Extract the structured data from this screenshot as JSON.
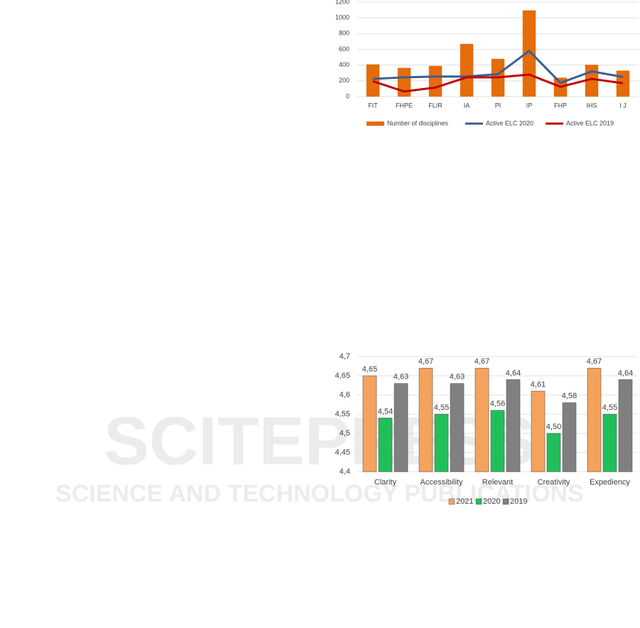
{
  "chart_data": [
    {
      "type": "bar",
      "categories": [
        "FIT",
        "FHPE",
        "FLIR",
        "IA",
        "PI",
        "IP",
        "FHP",
        "IHS",
        "I J"
      ],
      "series": [
        {
          "name": "Number of disciplines",
          "type": "bar",
          "color": "#e46c0a",
          "values": [
            410,
            365,
            390,
            670,
            480,
            1095,
            240,
            405,
            330
          ]
        },
        {
          "name": "Active ELC 2020",
          "type": "line",
          "color": "#3a5f8f",
          "values": [
            225,
            245,
            255,
            255,
            285,
            580,
            175,
            320,
            250
          ]
        },
        {
          "name": "Active ELC 2019",
          "type": "line",
          "color": "#c00000",
          "values": [
            195,
            65,
            115,
            245,
            245,
            280,
            125,
            225,
            170
          ]
        }
      ],
      "ylim": [
        0,
        1200
      ],
      "yticks": [
        0,
        200,
        400,
        600,
        800,
        1000,
        1200
      ],
      "grid": true,
      "legend": "bottom"
    },
    {
      "type": "bar",
      "categories": [
        "Clarity",
        "Accessibility",
        "Relevant",
        "Creativity",
        "Expediency"
      ],
      "series": [
        {
          "name": "2021",
          "color": "#f5a25d",
          "values": [
            4.65,
            4.67,
            4.67,
            4.61,
            4.67
          ],
          "value_labels": [
            "4,65",
            "4,67",
            "4,67",
            "4,61",
            "4,67"
          ]
        },
        {
          "name": "2020",
          "color": "#1fc05a",
          "values": [
            4.54,
            4.55,
            4.56,
            4.5,
            4.55
          ],
          "value_labels": [
            "4,54",
            "4,55",
            "4,56",
            "4,50",
            "4,55"
          ]
        },
        {
          "name": "2019",
          "color": "#808080",
          "values": [
            4.63,
            4.63,
            4.64,
            4.58,
            4.64
          ],
          "value_labels": [
            "4,63",
            "4,63",
            "4,64",
            "4,58",
            "4,64"
          ]
        }
      ],
      "ylim": [
        4.4,
        4.7
      ],
      "yticks": [
        {
          "value": 4.4,
          "label": "4,4"
        },
        {
          "value": 4.45,
          "label": "4,45"
        },
        {
          "value": 4.5,
          "label": "4,5"
        },
        {
          "value": 4.55,
          "label": "4,55"
        },
        {
          "value": 4.6,
          "label": "4,6"
        },
        {
          "value": 4.65,
          "label": "4,65"
        },
        {
          "value": 4.7,
          "label": "4,7"
        }
      ],
      "grid": true,
      "legend": "bottom"
    }
  ],
  "watermark": {
    "title": "SCITEPRESS",
    "subtitle": "SCIENCE AND TECHNOLOGY PUBLICATIONS"
  }
}
